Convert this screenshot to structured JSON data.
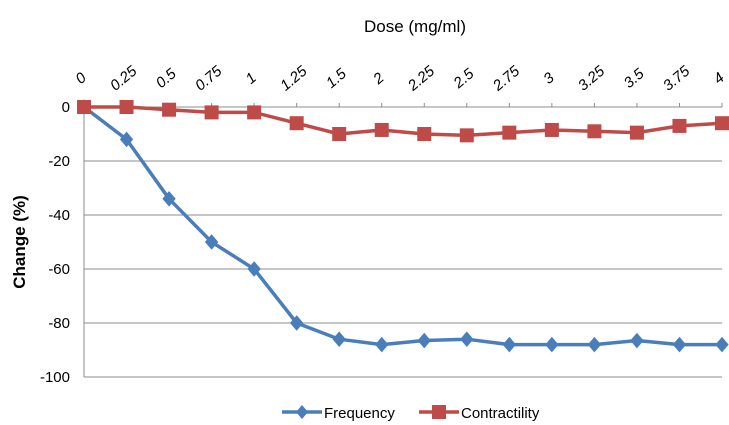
{
  "chart_data": {
    "type": "line",
    "title": "",
    "xlabel": "Dose (mg/ml)",
    "ylabel": "Change (%)",
    "x": [
      "0",
      "0.25",
      "0.5",
      "0.75",
      "1",
      "1.25",
      "1.5",
      "2",
      "2.25",
      "2.5",
      "2.75",
      "3",
      "3.25",
      "3.5",
      "3.75",
      "4"
    ],
    "ylim": [
      -100,
      0
    ],
    "yticks": [
      "0",
      "-20",
      "-40",
      "-60",
      "-80",
      "-100"
    ],
    "ytick_values": [
      0,
      -20,
      -40,
      -60,
      -80,
      -100
    ],
    "grid": "horizontal",
    "legend_position": "bottom",
    "x_axis_position": "top",
    "series": [
      {
        "name": "Frequency",
        "color": "#4a7ebb",
        "marker": "diamond",
        "values": [
          0,
          -12,
          -34,
          -50,
          -60,
          -80,
          -86,
          -88,
          -86.5,
          -86,
          -88,
          -88,
          -88,
          -86.5,
          -88,
          -88
        ]
      },
      {
        "name": "Contractility",
        "color": "#be4b48",
        "marker": "square",
        "values": [
          0,
          0,
          -1,
          -2,
          -2,
          -6,
          -10,
          -8.5,
          -10,
          -10.5,
          -9.5,
          -8.5,
          -9,
          -9.5,
          -7,
          -6
        ]
      }
    ]
  }
}
